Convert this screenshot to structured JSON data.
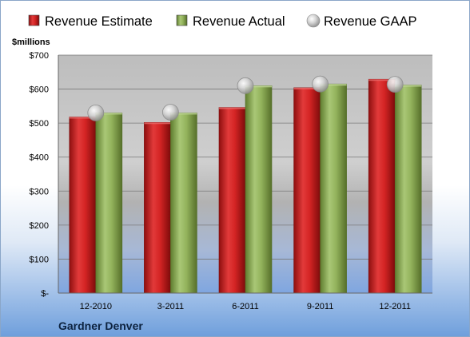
{
  "chart_data": {
    "type": "bar",
    "categories": [
      "12-2010",
      "3-2011",
      "6-2011",
      "9-2011",
      "12-2011"
    ],
    "series": [
      {
        "name": "Revenue Estimate",
        "values": [
          518,
          502,
          546,
          604,
          629
        ],
        "color": "#cc1f1f"
      },
      {
        "name": "Revenue Actual",
        "values": [
          530,
          530,
          610,
          615,
          612
        ],
        "color": "#8fb055"
      }
    ],
    "gaap": {
      "name": "Revenue GAAP",
      "values": [
        530,
        532,
        610,
        615,
        614
      ],
      "color": "#c8c8c8"
    },
    "ylabel": "$millions",
    "ylim": [
      0,
      700
    ],
    "yticks": [
      0,
      100,
      200,
      300,
      400,
      500,
      600,
      700
    ],
    "ytick_labels": [
      "$-",
      "$100",
      "$200",
      "$300",
      "$400",
      "$500",
      "$600",
      "$700"
    ],
    "legend_position": "top",
    "grid": true
  },
  "company": "Gardner Denver"
}
